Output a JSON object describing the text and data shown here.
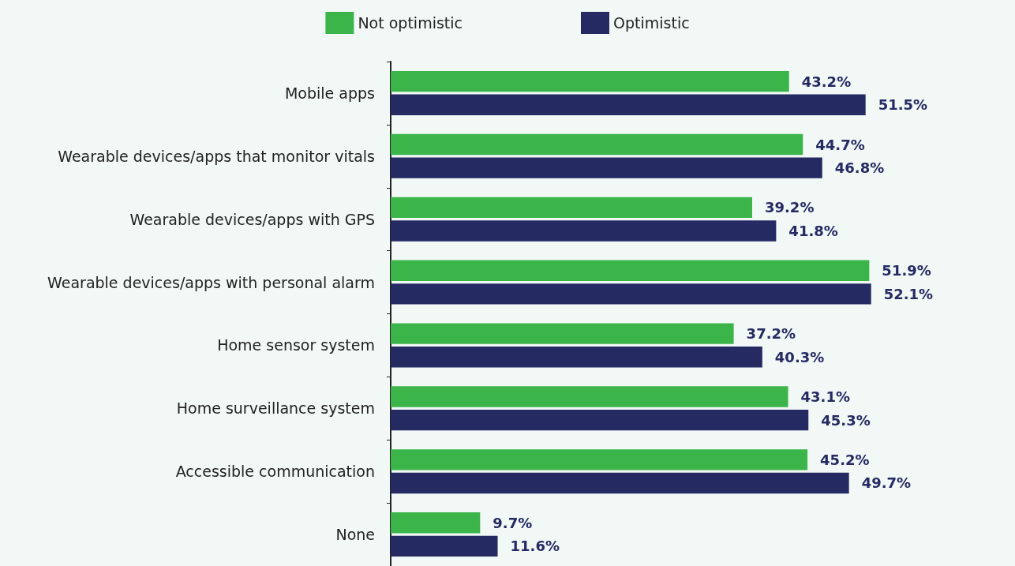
{
  "chart_data": {
    "type": "bar",
    "orientation": "horizontal",
    "legend": "top",
    "categories": [
      "Mobile apps",
      "Wearable devices/apps that monitor vitals",
      "Wearable devices/apps with GPS",
      "Wearable devices/apps with personal alarm",
      "Home sensor system",
      "Home surveillance system",
      "Accessible communication",
      "None"
    ],
    "series": [
      {
        "name": "Not optimistic",
        "color": "#3bb54a",
        "values": [
          43.2,
          44.7,
          39.2,
          51.9,
          37.2,
          43.1,
          45.2,
          9.7
        ],
        "value_labels": [
          "43.2%",
          "44.7%",
          "39.2%",
          "51.9%",
          "37.2%",
          "43.1%",
          "45.2%",
          "9.7%"
        ]
      },
      {
        "name": "Optimistic",
        "color": "#252a62",
        "values": [
          51.5,
          46.8,
          41.8,
          52.1,
          40.3,
          45.3,
          49.7,
          11.6
        ],
        "value_labels": [
          "51.5%",
          "46.8%",
          "41.8%",
          "52.1%",
          "40.3%",
          "45.3%",
          "49.7%",
          "11.6%"
        ]
      }
    ]
  }
}
